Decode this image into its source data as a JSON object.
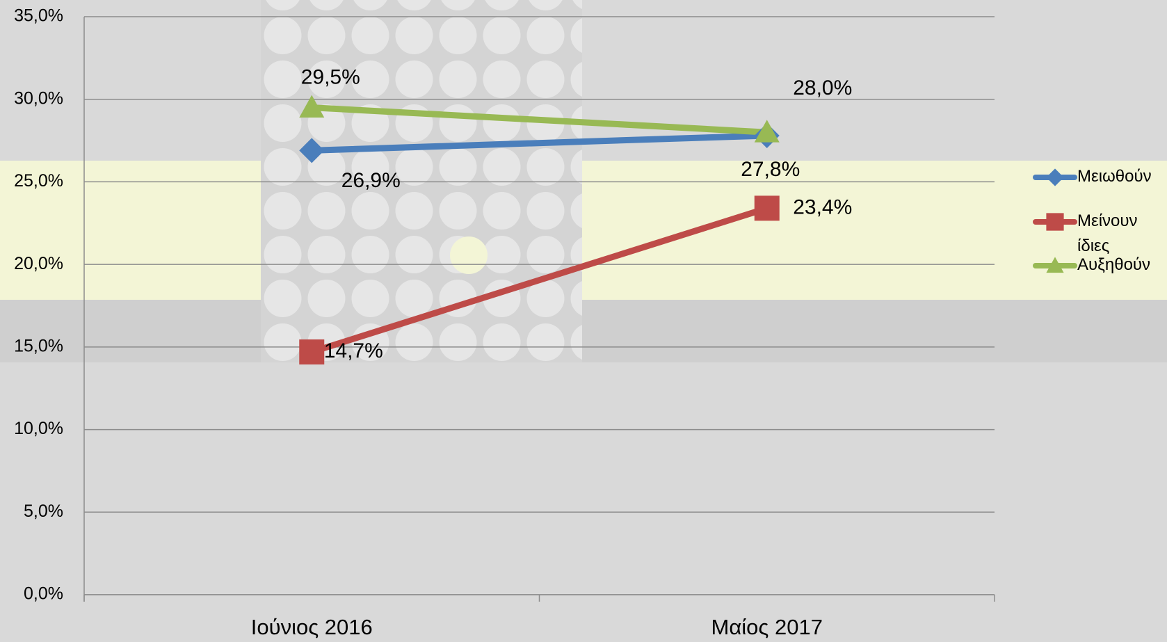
{
  "chart_data": {
    "type": "line",
    "categories": [
      "Ιούνιος 2016",
      "Μαίος 2017"
    ],
    "series": [
      {
        "name": "Μειωθούν",
        "color": "#4a7ebb",
        "marker": "diamond",
        "values": [
          26.9,
          27.8
        ],
        "value_labels": [
          "26,9%",
          "27,8%"
        ]
      },
      {
        "name": "Μείνουν ίδιες",
        "color": "#be4b48",
        "marker": "square",
        "values": [
          14.7,
          23.4
        ],
        "value_labels": [
          "14,7%",
          "23,4%"
        ]
      },
      {
        "name": "Αυξηθούν",
        "color": "#98b954",
        "marker": "triangle",
        "values": [
          29.5,
          28.0
        ],
        "value_labels": [
          "29,5%",
          "28,0%"
        ]
      }
    ],
    "ylim": [
      0,
      35
    ],
    "yticks": [
      {
        "value": 0,
        "label": "0,0%"
      },
      {
        "value": 5,
        "label": "5,0%"
      },
      {
        "value": 10,
        "label": "10,0%"
      },
      {
        "value": 15,
        "label": "15,0%"
      },
      {
        "value": 20,
        "label": "20,0%"
      },
      {
        "value": 25,
        "label": "25,0%"
      },
      {
        "value": 30,
        "label": "30,0%"
      },
      {
        "value": 35,
        "label": "35,0%"
      }
    ],
    "grid": true,
    "legend": "right"
  }
}
